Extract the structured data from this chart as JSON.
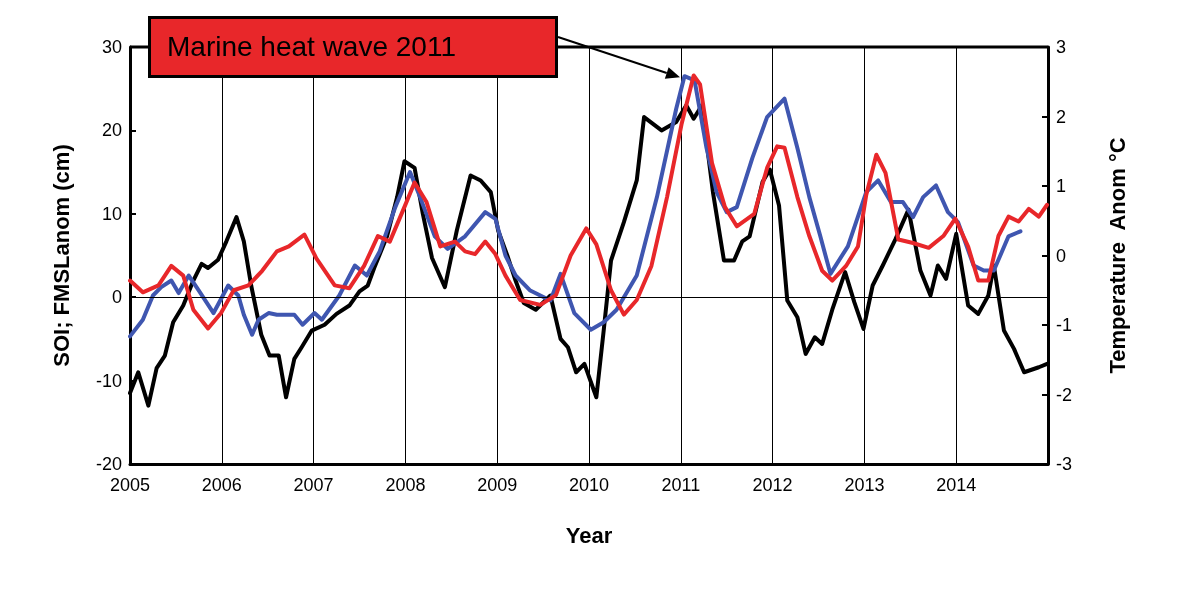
{
  "chart_data": {
    "type": "line",
    "xlabel": "Year",
    "ylabel": "SOI; FMSLanom (cm)",
    "y2label": "Temperature  Anom °C",
    "xlim": [
      2005,
      2015
    ],
    "xticks": [
      2005,
      2006,
      2007,
      2008,
      2009,
      2010,
      2011,
      2012,
      2013,
      2014
    ],
    "ylim": [
      -20,
      30
    ],
    "yticks": [
      -20,
      -10,
      0,
      10,
      20,
      30
    ],
    "y2lim": [
      -3,
      3
    ],
    "y2ticks": [
      -3,
      -2,
      -1,
      0,
      1,
      2,
      3
    ],
    "grid": "x",
    "marker": "none",
    "line_style": "solid",
    "ref_lines": [
      {
        "axis": "y",
        "value": 0,
        "color": "#000000"
      }
    ],
    "annotations": [
      "Marine heat wave 2011"
    ],
    "series": [
      {
        "color": "#000000",
        "x": [
          2005,
          2005.09,
          2005.2,
          2005.29,
          2005.38,
          2005.47,
          2005.58,
          2005.69,
          2005.78,
          2005.85,
          2005.96,
          2006.05,
          2006.16,
          2006.24,
          2006.32,
          2006.43,
          2006.52,
          2006.62,
          2006.7,
          2006.79,
          2006.87,
          2006.98,
          2007.12,
          2007.25,
          2007.39,
          2007.5,
          2007.59,
          2007.66,
          2007.8,
          2007.91,
          2007.99,
          2008.1,
          2008.19,
          2008.29,
          2008.43,
          2008.56,
          2008.71,
          2008.82,
          2008.93,
          2009.01,
          2009.11,
          2009.2,
          2009.29,
          2009.42,
          2009.58,
          2009.69,
          2009.77,
          2009.86,
          2009.95,
          2010.08,
          2010.16,
          2010.24,
          2010.38,
          2010.52,
          2010.6,
          2010.79,
          2010.95,
          2011.06,
          2011.14,
          2011.23,
          2011.35,
          2011.47,
          2011.58,
          2011.67,
          2011.75,
          2011.89,
          2011.97,
          2012.07,
          2012.16,
          2012.27,
          2012.36,
          2012.46,
          2012.54,
          2012.65,
          2012.79,
          2012.89,
          2012.99,
          2013.09,
          2013.2,
          2013.34,
          2013.48,
          2013.61,
          2013.72,
          2013.8,
          2013.89,
          2014,
          2014.13,
          2014.24,
          2014.35,
          2014.41,
          2014.52,
          2014.63,
          2014.74,
          2014.9,
          2014.99
        ],
        "values": [
          -11.5,
          -9,
          -13,
          -8.5,
          -7,
          -3,
          -1,
          2,
          4,
          3.5,
          4.5,
          6.7,
          9.6,
          6.7,
          1.4,
          -4.5,
          -7,
          -7,
          -12,
          -7.4,
          -6,
          -4,
          -3.3,
          -2,
          -1,
          0.7,
          1.4,
          3.5,
          7.3,
          12,
          16.3,
          15.5,
          10,
          4.7,
          1.2,
          8,
          14.6,
          14,
          12.6,
          8,
          5,
          2,
          -0.7,
          -1.5,
          0.2,
          -5,
          -6,
          -9,
          -8,
          -12,
          -4,
          4.4,
          9,
          14,
          21.6,
          20,
          21,
          23,
          21.4,
          23,
          12.6,
          4.4,
          4.4,
          6.7,
          7.3,
          13.8,
          15.3,
          11,
          -0.4,
          -2.4,
          -6.8,
          -4.8,
          -5.6,
          -1.5,
          3,
          -0.6,
          -3.8,
          1.4,
          3.8,
          7,
          10.5,
          3.2,
          0.2,
          3.8,
          2.2,
          7.6,
          -1,
          -2,
          0.2,
          3.8,
          -4,
          -6.2,
          -9,
          -8.4,
          -8
        ]
      },
      {
        "color": "#3f56b0",
        "x": [
          2005,
          2005.14,
          2005.25,
          2005.34,
          2005.45,
          2005.53,
          2005.64,
          2005.75,
          2005.91,
          2006.07,
          2006.18,
          2006.24,
          2006.33,
          2006.4,
          2006.51,
          2006.6,
          2006.79,
          2006.88,
          2007.01,
          2007.09,
          2007.28,
          2007.45,
          2007.58,
          2007.72,
          2007.89,
          2008.05,
          2008.16,
          2008.32,
          2008.46,
          2008.65,
          2008.87,
          2008.98,
          2009.09,
          2009.2,
          2009.36,
          2009.58,
          2009.69,
          2009.84,
          2010.02,
          2010.16,
          2010.3,
          2010.52,
          2010.74,
          2010.95,
          2011.04,
          2011.15,
          2011.28,
          2011.39,
          2011.5,
          2011.61,
          2011.78,
          2011.94,
          2012.13,
          2012.27,
          2012.4,
          2012.52,
          2012.63,
          2012.82,
          2013.02,
          2013.15,
          2013.29,
          2013.42,
          2013.53,
          2013.64,
          2013.78,
          2013.91,
          2014.02,
          2014.19,
          2014.3,
          2014.41,
          2014.57,
          2014.7
        ],
        "values": [
          -4.7,
          -2.7,
          0.2,
          1.2,
          2,
          0.5,
          2.6,
          0.8,
          -1.9,
          1.4,
          0.2,
          -2.1,
          -4.5,
          -2.7,
          -1.9,
          -2.1,
          -2.1,
          -3.3,
          -1.9,
          -2.7,
          0.2,
          3.8,
          2.6,
          5.5,
          10.8,
          15,
          12,
          7.3,
          5.8,
          7.3,
          10.2,
          9.4,
          5,
          2.6,
          0.8,
          -0.4,
          2.8,
          -1.9,
          -3.9,
          -3,
          -1.5,
          2.6,
          12,
          22.6,
          26.5,
          26,
          17.9,
          12.6,
          10.2,
          10.8,
          16.7,
          21.6,
          23.8,
          17.9,
          12,
          7.3,
          2.8,
          6.1,
          12.6,
          14,
          11.4,
          11.4,
          9.6,
          12,
          13.4,
          10.2,
          9,
          3.8,
          3.2,
          3.2,
          7.3,
          7.9
        ]
      },
      {
        "color": "#e8272a",
        "axis": "y2",
        "x": [
          2005,
          2005.14,
          2005.31,
          2005.45,
          2005.58,
          2005.69,
          2005.85,
          2005.99,
          2006.13,
          2006.29,
          2006.44,
          2006.6,
          2006.73,
          2006.9,
          2007.03,
          2007.23,
          2007.39,
          2007.55,
          2007.7,
          2007.83,
          2007.99,
          2008.1,
          2008.23,
          2008.38,
          2008.54,
          2008.65,
          2008.76,
          2008.87,
          2008.98,
          2009.09,
          2009.25,
          2009.47,
          2009.64,
          2009.8,
          2009.97,
          2010.08,
          2010.24,
          2010.38,
          2010.52,
          2010.68,
          2010.85,
          2011.01,
          2011.14,
          2011.21,
          2011.34,
          2011.48,
          2011.61,
          2011.8,
          2011.94,
          2012.05,
          2012.13,
          2012.27,
          2012.4,
          2012.54,
          2012.65,
          2012.8,
          2012.93,
          2013.02,
          2013.13,
          2013.23,
          2013.37,
          2013.53,
          2013.7,
          2013.86,
          2013.99,
          2014.13,
          2014.24,
          2014.35,
          2014.46,
          2014.57,
          2014.68,
          2014.79,
          2014.9,
          2014.99
        ],
        "values": [
          -0.36,
          -0.53,
          -0.43,
          -0.15,
          -0.29,
          -0.78,
          -1.05,
          -0.83,
          -0.5,
          -0.43,
          -0.22,
          0.06,
          0.13,
          0.3,
          -0.04,
          -0.43,
          -0.47,
          -0.15,
          0.28,
          0.2,
          0.7,
          1.05,
          0.77,
          0.13,
          0.2,
          0.06,
          0.02,
          0.2,
          0.02,
          -0.29,
          -0.64,
          -0.71,
          -0.57,
          0,
          0.39,
          0.16,
          -0.5,
          -0.85,
          -0.64,
          -0.15,
          0.84,
          1.9,
          2.59,
          2.46,
          1.33,
          0.7,
          0.42,
          0.6,
          1.26,
          1.57,
          1.55,
          0.84,
          0.28,
          -0.22,
          -0.36,
          -0.15,
          0.13,
          0.87,
          1.45,
          1.19,
          0.23,
          0.18,
          0.11,
          0.28,
          0.53,
          0.13,
          -0.36,
          -0.36,
          0.28,
          0.56,
          0.49,
          0.67,
          0.56,
          0.73
        ]
      }
    ]
  }
}
